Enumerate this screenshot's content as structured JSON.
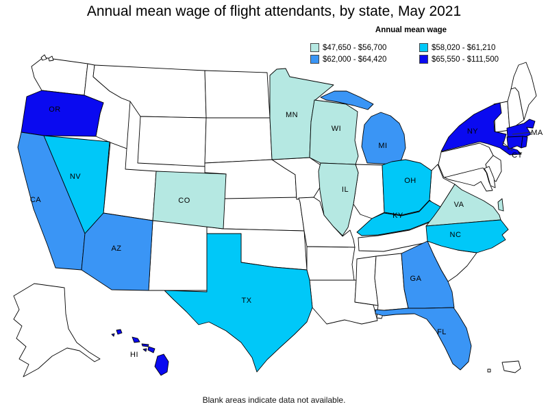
{
  "title": "Annual mean wage of flight attendants, by state, May 2021",
  "legend": {
    "title": "Annual mean wage",
    "items": [
      {
        "range": "$47,650 - $56,700",
        "color": "#b5e8e2"
      },
      {
        "range": "$58,020 - $61,210",
        "color": "#00c8f8"
      },
      {
        "range": "$62,000 - $64,420",
        "color": "#3a95f5"
      },
      {
        "range": "$65,550 - $111,500",
        "color": "#0a0af0"
      }
    ]
  },
  "footnote": "Blank areas indicate data not available.",
  "map": {
    "blank_fill": "#ffffff",
    "stroke": "#000000",
    "states": [
      {
        "abbr": "OR",
        "bin": 3,
        "label": [
          80,
          159
        ]
      },
      {
        "abbr": "CA",
        "bin": 2,
        "label": [
          52,
          291
        ]
      },
      {
        "abbr": "NV",
        "bin": 1,
        "label": [
          110,
          257
        ]
      },
      {
        "abbr": "AZ",
        "bin": 2,
        "label": [
          170,
          362
        ]
      },
      {
        "abbr": "CO",
        "bin": 0,
        "label": [
          269,
          292
        ]
      },
      {
        "abbr": "TX",
        "bin": 1,
        "label": [
          360,
          438
        ]
      },
      {
        "abbr": "MN",
        "bin": 0,
        "label": [
          426,
          167
        ]
      },
      {
        "abbr": "WI",
        "bin": 0,
        "label": [
          491,
          187
        ]
      },
      {
        "abbr": "IL",
        "bin": 0,
        "label": [
          504,
          276
        ]
      },
      {
        "abbr": "MI",
        "bin": 2,
        "label": [
          559,
          212
        ]
      },
      {
        "abbr": "OH",
        "bin": 1,
        "label": [
          599,
          263
        ]
      },
      {
        "abbr": "KY",
        "bin": 1,
        "label": [
          581,
          314
        ]
      },
      {
        "abbr": "VA",
        "bin": 0,
        "label": [
          670,
          298
        ]
      },
      {
        "abbr": "NC",
        "bin": 1,
        "label": [
          665,
          342
        ]
      },
      {
        "abbr": "GA",
        "bin": 2,
        "label": [
          607,
          406
        ]
      },
      {
        "abbr": "FL",
        "bin": 2,
        "label": [
          645,
          484
        ]
      },
      {
        "abbr": "NY",
        "bin": 3,
        "label": [
          690,
          191
        ]
      },
      {
        "abbr": "MA",
        "bin": 3,
        "label": [
          784,
          193
        ],
        "leader": [
          [
            776,
            193
          ],
          [
            748,
            196
          ]
        ]
      },
      {
        "abbr": "CT",
        "bin": 3,
        "label": [
          755,
          226
        ],
        "leader": [
          [
            748,
            220
          ],
          [
            733,
            207
          ]
        ]
      },
      {
        "abbr": "RI",
        "bin": 3,
        "label": null
      },
      {
        "abbr": "HI",
        "bin": 3,
        "label": [
          196,
          517
        ]
      }
    ],
    "blank_states": [
      "WA",
      "ID",
      "MT",
      "WY",
      "UT",
      "NM",
      "ND",
      "SD",
      "NE",
      "KS",
      "OK",
      "IA",
      "MO",
      "AR",
      "LA",
      "MS",
      "AL",
      "TN",
      "SC",
      "WV",
      "PA",
      "NJ",
      "DE",
      "MD",
      "IN",
      "VT",
      "NH",
      "ME",
      "AK",
      "PR"
    ]
  },
  "chart_data": {
    "type": "heatmap",
    "title": "Annual mean wage of flight attendants, by state, May 2021",
    "legend_title": "Annual mean wage",
    "legend_position": "top-right",
    "bins": [
      "$47,650 - $56,700",
      "$58,020 - $61,210",
      "$62,000 - $64,420",
      "$65,550 - $111,500"
    ],
    "bin_colors": [
      "#b5e8e2",
      "#00c8f8",
      "#3a95f5",
      "#0a0af0"
    ],
    "states": {
      "OR": "$65,550 - $111,500",
      "NY": "$65,550 - $111,500",
      "MA": "$65,550 - $111,500",
      "CT": "$65,550 - $111,500",
      "RI": "$65,550 - $111,500",
      "HI": "$65,550 - $111,500",
      "CA": "$62,000 - $64,420",
      "AZ": "$62,000 - $64,420",
      "MI": "$62,000 - $64,420",
      "GA": "$62,000 - $64,420",
      "FL": "$62,000 - $64,420",
      "NV": "$58,020 - $61,210",
      "TX": "$58,020 - $61,210",
      "OH": "$58,020 - $61,210",
      "KY": "$58,020 - $61,210",
      "NC": "$58,020 - $61,210",
      "CO": "$47,650 - $56,700",
      "MN": "$47,650 - $56,700",
      "WI": "$47,650 - $56,700",
      "IL": "$47,650 - $56,700",
      "VA": "$47,650 - $56,700"
    },
    "no_data_note": "Blank areas indicate data not available."
  }
}
